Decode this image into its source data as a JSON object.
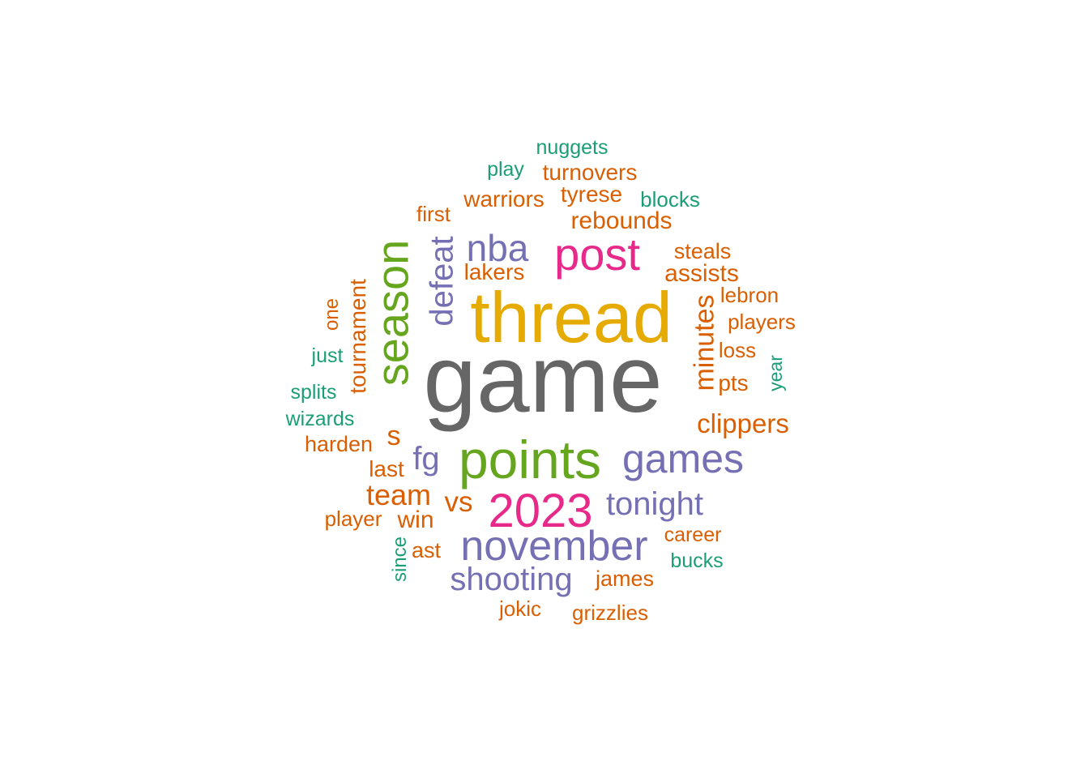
{
  "palette": {
    "gray": "#666666",
    "gold": "#E6AB02",
    "green": "#66A61E",
    "pink": "#E7298A",
    "purple": "#7570B3",
    "orange": "#D95F02",
    "teal": "#1B9E77"
  },
  "words": [
    {
      "text": "game",
      "color": "gray"
    },
    {
      "text": "thread",
      "color": "gold"
    },
    {
      "text": "points",
      "color": "green"
    },
    {
      "text": "season",
      "color": "green"
    },
    {
      "text": "post",
      "color": "pink"
    },
    {
      "text": "2023",
      "color": "pink"
    },
    {
      "text": "november",
      "color": "purple"
    },
    {
      "text": "games",
      "color": "purple"
    },
    {
      "text": "nba",
      "color": "purple"
    },
    {
      "text": "tonight",
      "color": "purple"
    },
    {
      "text": "shooting",
      "color": "purple"
    },
    {
      "text": "defeat",
      "color": "purple"
    },
    {
      "text": "fg",
      "color": "purple"
    },
    {
      "text": "nuggets",
      "color": "teal"
    },
    {
      "text": "play",
      "color": "teal"
    },
    {
      "text": "turnovers",
      "color": "orange"
    },
    {
      "text": "warriors",
      "color": "orange"
    },
    {
      "text": "tyrese",
      "color": "orange"
    },
    {
      "text": "blocks",
      "color": "teal"
    },
    {
      "text": "first",
      "color": "orange"
    },
    {
      "text": "rebounds",
      "color": "orange"
    },
    {
      "text": "steals",
      "color": "orange"
    },
    {
      "text": "lakers",
      "color": "orange"
    },
    {
      "text": "assists",
      "color": "orange"
    },
    {
      "text": "lebron",
      "color": "orange"
    },
    {
      "text": "tournament",
      "color": "orange"
    },
    {
      "text": "one",
      "color": "orange"
    },
    {
      "text": "minutes",
      "color": "orange"
    },
    {
      "text": "players",
      "color": "orange"
    },
    {
      "text": "just",
      "color": "teal"
    },
    {
      "text": "loss",
      "color": "orange"
    },
    {
      "text": "year",
      "color": "teal"
    },
    {
      "text": "splits",
      "color": "teal"
    },
    {
      "text": "pts",
      "color": "orange"
    },
    {
      "text": "wizards",
      "color": "teal"
    },
    {
      "text": "clippers",
      "color": "orange"
    },
    {
      "text": "s",
      "color": "orange"
    },
    {
      "text": "harden",
      "color": "orange"
    },
    {
      "text": "last",
      "color": "orange"
    },
    {
      "text": "team",
      "color": "orange"
    },
    {
      "text": "vs",
      "color": "orange"
    },
    {
      "text": "player",
      "color": "orange"
    },
    {
      "text": "win",
      "color": "orange"
    },
    {
      "text": "career",
      "color": "orange"
    },
    {
      "text": "ast",
      "color": "orange"
    },
    {
      "text": "since",
      "color": "teal"
    },
    {
      "text": "bucks",
      "color": "teal"
    },
    {
      "text": "james",
      "color": "orange"
    },
    {
      "text": "jokic",
      "color": "orange"
    },
    {
      "text": "grizzlies",
      "color": "orange"
    }
  ]
}
